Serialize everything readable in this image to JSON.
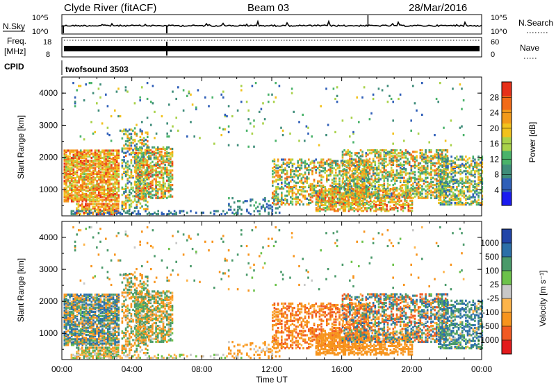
{
  "header": {
    "station": "Clyde River (fitACF)",
    "beam": "Beam 03",
    "date": "28/Mar/2016"
  },
  "aux_panels": {
    "nsky_label": "N.Sky",
    "nsky_ticks": [
      "10^5",
      "10^0"
    ],
    "nsearch_label": "N.Search",
    "nsearch_ticks": [
      "10^5",
      "10^0"
    ],
    "freq_label_1": "Freq.",
    "freq_label_2": "[MHz]",
    "freq_ticks": [
      "18",
      "8"
    ],
    "nave_label": "Nave",
    "nave_ticks": [
      "60",
      "0"
    ],
    "cpid_label": "CPID",
    "cpid_value": "twofsound 3503"
  },
  "colors": {
    "power_scale": [
      "#1b1bf0",
      "#2f5fb8",
      "#3f8d7a",
      "#4ab36a",
      "#a9d24a",
      "#f2c21d",
      "#f39a1a",
      "#f26b18",
      "#e73019"
    ],
    "velocity_scale": [
      "#e31a1c",
      "#f15a22",
      "#f7941d",
      "#fdb44a",
      "#c8c8c8",
      "#6cc24a",
      "#4a9a6a",
      "#2b6fa8",
      "#2145a8"
    ]
  },
  "chart_data": [
    {
      "type": "heatmap",
      "name": "power",
      "ylabel": "Slant Range [km]",
      "ylim": [
        180,
        4500
      ],
      "y_ticks": [
        "1000",
        "2000",
        "3000",
        "4000"
      ],
      "xlim": [
        0,
        24
      ],
      "colorbar_label": "Power [dB]",
      "colorbar_ticks": [
        "4",
        "8",
        "12",
        "16",
        "20",
        "24",
        "28"
      ],
      "colorbar_range": [
        0,
        32
      ]
    },
    {
      "type": "heatmap",
      "name": "velocity",
      "ylabel": "Slant Range [km]",
      "ylim": [
        180,
        4500
      ],
      "y_ticks": [
        "1000",
        "2000",
        "3000",
        "4000"
      ],
      "xlim": [
        0,
        24
      ],
      "x_ticks": [
        "00:00",
        "04:00",
        "08:00",
        "12:00",
        "16:00",
        "20:00",
        "00:00"
      ],
      "xlabel": "Time UT",
      "colorbar_label": "Velocity [m s⁻¹]",
      "colorbar_ticks": [
        "1000",
        "500",
        "100",
        "25",
        "-25",
        "-100",
        "-500",
        "-1000"
      ]
    }
  ]
}
